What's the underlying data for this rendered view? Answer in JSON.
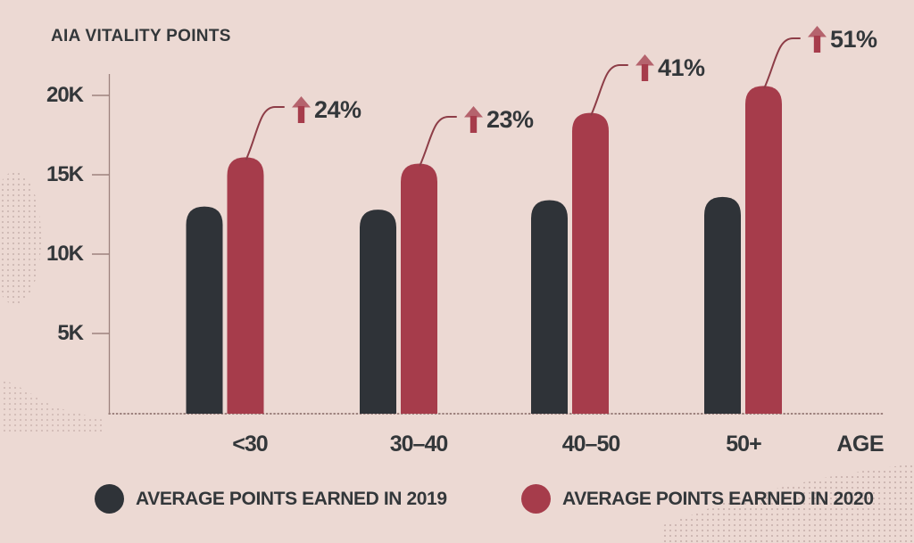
{
  "title": "AIA VITALITY POINTS",
  "chart_data": {
    "type": "bar",
    "title": "AIA VITALITY POINTS",
    "categories": [
      "<30",
      "30–40",
      "40–50",
      "50+"
    ],
    "x_axis_title": "AGE",
    "series": [
      {
        "name": "AVERAGE POINTS EARNED IN 2019",
        "color": "#2f3338",
        "values": [
          13000,
          12800,
          13400,
          13600
        ]
      },
      {
        "name": "AVERAGE POINTS EARNED IN 2020",
        "color": "#a63c4b",
        "values": [
          16100,
          15700,
          18900,
          20600
        ]
      }
    ],
    "annotations": [
      {
        "category": "<30",
        "label": "24%"
      },
      {
        "category": "30–40",
        "label": "23%"
      },
      {
        "category": "40–50",
        "label": "41%"
      },
      {
        "category": "50+",
        "label": "51%"
      }
    ],
    "yticks": [
      {
        "value": 20000,
        "label": "20K"
      },
      {
        "value": 15000,
        "label": "15K"
      },
      {
        "value": 10000,
        "label": "10K"
      },
      {
        "value": 5000,
        "label": "5K"
      }
    ],
    "ylim": [
      0,
      21500
    ],
    "grid": false,
    "legend_position": "bottom"
  },
  "colors": {
    "background": "#ecd9d3",
    "bar_2019": "#2f3338",
    "bar_2020": "#a63c4b",
    "text": "#33373a",
    "axis": "#9d827e",
    "leader_line": "#8d3d47",
    "arrow_shaft": "#a63c4b",
    "arrow_head": "#b5636d"
  }
}
